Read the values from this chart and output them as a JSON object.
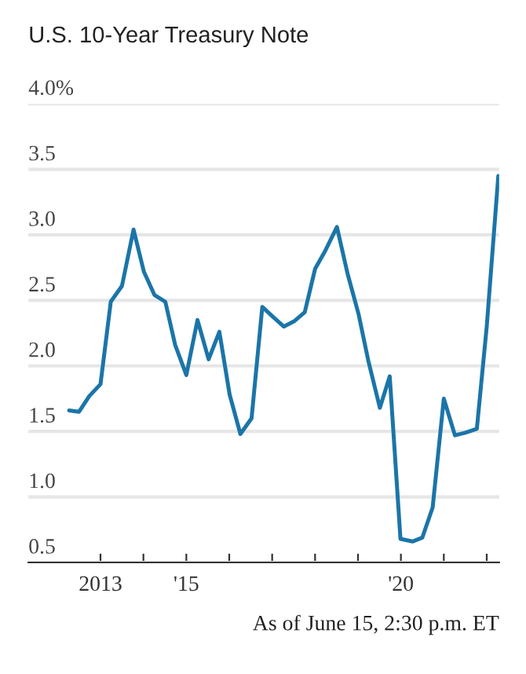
{
  "chart_data": {
    "type": "line",
    "title": "U.S. 10-Year Treasury Note",
    "annotations": [
      "As of June 15, 2:30 p.m. ET"
    ],
    "x": [
      2012.27,
      2012.5,
      2012.74,
      2013.0,
      2013.24,
      2013.5,
      2013.77,
      2014.01,
      2014.26,
      2014.51,
      2014.74,
      2015.0,
      2015.26,
      2015.52,
      2015.77,
      2016.01,
      2016.26,
      2016.52,
      2016.77,
      2017.0,
      2017.27,
      2017.51,
      2017.76,
      2018.0,
      2018.24,
      2018.51,
      2018.76,
      2019.01,
      2019.24,
      2019.51,
      2019.74,
      2019.99,
      2020.27,
      2020.5,
      2020.74,
      2021.0,
      2021.26,
      2021.5,
      2021.77,
      2022.0,
      2022.27
    ],
    "series": [
      {
        "color": "#1b75a8",
        "values": [
          1.66,
          1.65,
          1.77,
          1.86,
          2.49,
          2.61,
          3.04,
          2.72,
          2.54,
          2.49,
          2.16,
          1.93,
          2.35,
          2.05,
          2.26,
          1.78,
          1.48,
          1.6,
          2.45,
          2.38,
          2.3,
          2.34,
          2.41,
          2.74,
          2.88,
          3.06,
          2.7,
          2.4,
          2.04,
          1.68,
          1.92,
          0.68,
          0.66,
          0.69,
          0.92,
          1.75,
          1.47,
          1.49,
          1.52,
          2.3,
          3.45
        ]
      }
    ],
    "xlim": [
      2011.32,
      2022.29
    ],
    "xticks": [
      {
        "value": 2013,
        "label": "2013"
      },
      {
        "value": 2014,
        "label": null
      },
      {
        "value": 2015,
        "label": "'15"
      },
      {
        "value": 2016,
        "label": null
      },
      {
        "value": 2017,
        "label": null
      },
      {
        "value": 2018,
        "label": null
      },
      {
        "value": 2019,
        "label": null
      },
      {
        "value": 2020,
        "label": "'20"
      },
      {
        "value": 2021,
        "label": null
      },
      {
        "value": 2022,
        "label": null
      }
    ],
    "ylim": [
      0.5,
      4.0
    ],
    "yticks": [
      {
        "value": 0.5,
        "label": "0.5"
      },
      {
        "value": 1.0,
        "label": "1.0"
      },
      {
        "value": 1.5,
        "label": "1.5"
      },
      {
        "value": 2.0,
        "label": "2.0"
      },
      {
        "value": 2.5,
        "label": "2.5"
      },
      {
        "value": 3.0,
        "label": "3.0"
      },
      {
        "value": 3.5,
        "label": "3.5"
      },
      {
        "value": 4.0,
        "label": "4.0%"
      }
    ],
    "grid": "y",
    "marker": "none",
    "line_style": "solid",
    "legend": false
  }
}
